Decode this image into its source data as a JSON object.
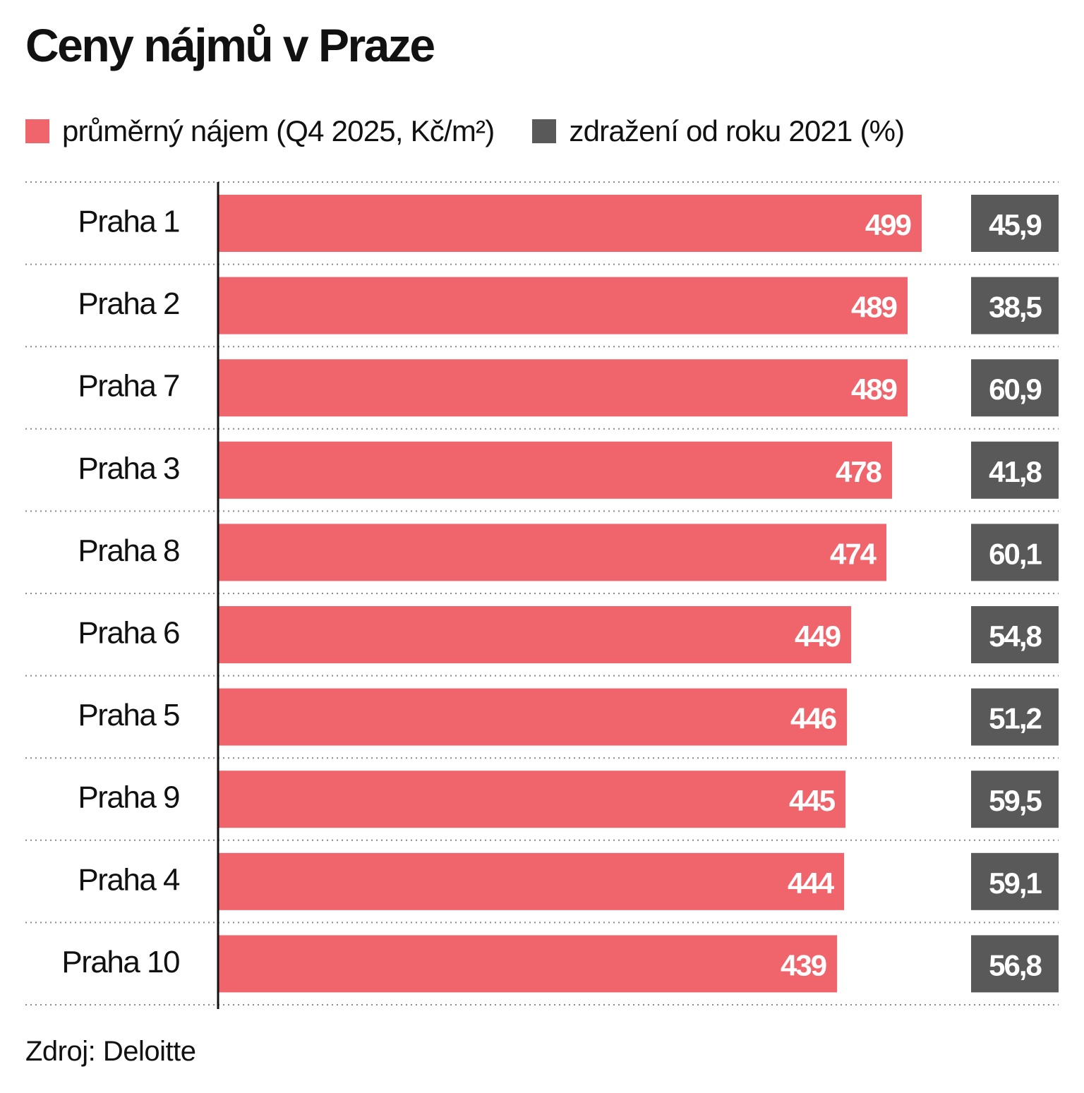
{
  "chart_data": {
    "type": "bar",
    "title": "Ceny nájmů v Praze",
    "categories": [
      "Praha 1",
      "Praha 2",
      "Praha 7",
      "Praha 3",
      "Praha 8",
      "Praha 6",
      "Praha 5",
      "Praha 9",
      "Praha 4",
      "Praha 10"
    ],
    "series": [
      {
        "name": "průměrný nájem (Q4 2025, Kč/m²)",
        "color": "#f0646b",
        "values": [
          499,
          489,
          489,
          478,
          474,
          449,
          446,
          445,
          444,
          439
        ]
      },
      {
        "name": "zdražení od roku 2021 (%)",
        "color": "#595959",
        "values": [
          "45,9",
          "38,5",
          "60,9",
          "41,8",
          "60,1",
          "54,8",
          "51,2",
          "59,5",
          "59,1",
          "56,8"
        ]
      }
    ],
    "xlabel": "",
    "ylabel": "",
    "grid": "dotted row separators",
    "legend_position": "top-left",
    "source": "Zdroj: Deloitte"
  }
}
